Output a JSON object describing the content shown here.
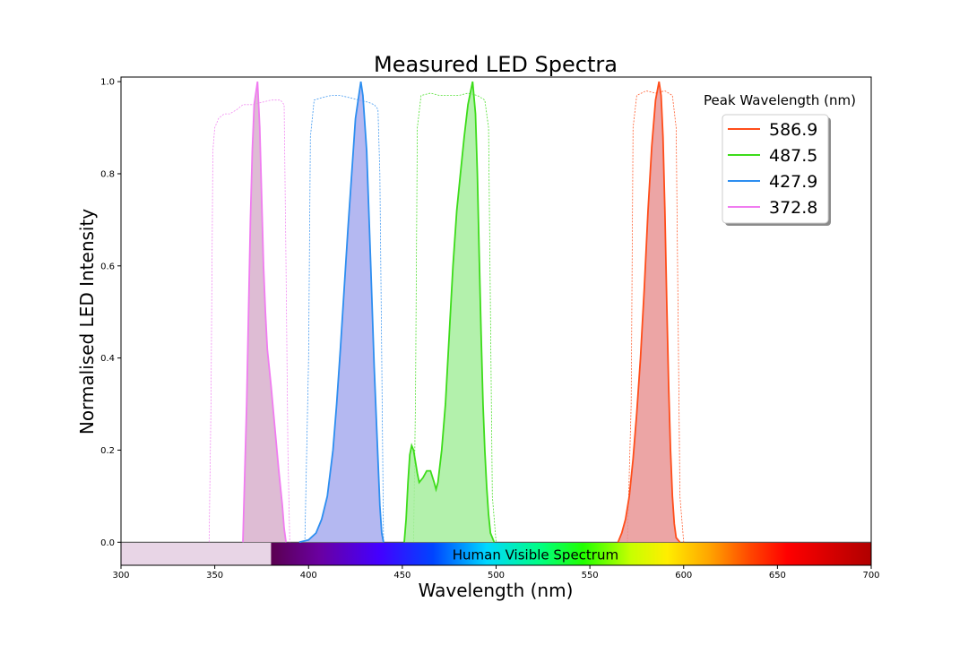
{
  "chart_data": {
    "type": "line",
    "title": "Measured LED Spectra",
    "xlabel": "Wavelength (nm)",
    "ylabel": "Normalised LED Intensity",
    "xlim": [
      300,
      700
    ],
    "ylim": [
      -0.05,
      1.01
    ],
    "x_ticks": [
      300,
      350,
      400,
      450,
      500,
      550,
      600,
      650,
      700
    ],
    "y_ticks": [
      0.0,
      0.2,
      0.4,
      0.6,
      0.8,
      1.0
    ],
    "legend_title": "Peak Wavelength (nm)",
    "legend_position": "top-right",
    "visible_band_label": "Human Visible Spectrum",
    "uv_band_range": [
      300,
      380
    ],
    "visible_band_range": [
      380,
      700
    ],
    "series": [
      {
        "name": "586.9",
        "color": "#ff4d1a",
        "fill": "#e99595",
        "peak": 586.9,
        "points": [
          [
            565,
            0
          ],
          [
            567,
            0.02
          ],
          [
            569,
            0.05
          ],
          [
            571,
            0.1
          ],
          [
            573,
            0.18
          ],
          [
            575,
            0.28
          ],
          [
            577,
            0.4
          ],
          [
            579,
            0.55
          ],
          [
            581,
            0.72
          ],
          [
            583,
            0.86
          ],
          [
            585,
            0.96
          ],
          [
            586.9,
            1.0
          ],
          [
            588,
            0.97
          ],
          [
            589,
            0.88
          ],
          [
            590,
            0.72
          ],
          [
            591,
            0.52
          ],
          [
            592,
            0.34
          ],
          [
            593,
            0.2
          ],
          [
            594,
            0.1
          ],
          [
            595,
            0.04
          ],
          [
            596,
            0.01
          ],
          [
            598,
            0
          ]
        ],
        "filter": [
          [
            570,
            0
          ],
          [
            572,
            0.3
          ],
          [
            573,
            0.9
          ],
          [
            575,
            0.97
          ],
          [
            580,
            0.98
          ],
          [
            585,
            0.975
          ],
          [
            590,
            0.98
          ],
          [
            594,
            0.97
          ],
          [
            596,
            0.9
          ],
          [
            597,
            0.5
          ],
          [
            598,
            0.1
          ],
          [
            600,
            0
          ]
        ]
      },
      {
        "name": "487.5",
        "color": "#3ddc1a",
        "fill": "#a6ee9e",
        "peak": 487.5,
        "points": [
          [
            451,
            0
          ],
          [
            452,
            0.05
          ],
          [
            453,
            0.13
          ],
          [
            454,
            0.19
          ],
          [
            455,
            0.21
          ],
          [
            456,
            0.2
          ],
          [
            458,
            0.15
          ],
          [
            459,
            0.13
          ],
          [
            461,
            0.14
          ],
          [
            463,
            0.155
          ],
          [
            465,
            0.155
          ],
          [
            467,
            0.13
          ],
          [
            468,
            0.115
          ],
          [
            469,
            0.13
          ],
          [
            471,
            0.2
          ],
          [
            473,
            0.3
          ],
          [
            475,
            0.45
          ],
          [
            477,
            0.6
          ],
          [
            479,
            0.72
          ],
          [
            481,
            0.8
          ],
          [
            483,
            0.88
          ],
          [
            485,
            0.95
          ],
          [
            487.5,
            1.0
          ],
          [
            489,
            0.93
          ],
          [
            490,
            0.8
          ],
          [
            491,
            0.62
          ],
          [
            492,
            0.45
          ],
          [
            493,
            0.3
          ],
          [
            494,
            0.2
          ],
          [
            495,
            0.12
          ],
          [
            496,
            0.06
          ],
          [
            497,
            0.02
          ],
          [
            499,
            0
          ]
        ],
        "filter": [
          [
            456,
            0
          ],
          [
            457,
            0.3
          ],
          [
            458,
            0.9
          ],
          [
            460,
            0.97
          ],
          [
            465,
            0.975
          ],
          [
            470,
            0.97
          ],
          [
            475,
            0.97
          ],
          [
            480,
            0.97
          ],
          [
            485,
            0.975
          ],
          [
            490,
            0.97
          ],
          [
            494,
            0.96
          ],
          [
            496,
            0.9
          ],
          [
            497,
            0.5
          ],
          [
            498,
            0.1
          ],
          [
            500,
            0
          ]
        ]
      },
      {
        "name": "427.9",
        "color": "#2d8ef0",
        "fill": "#a7abee",
        "peak": 427.9,
        "points": [
          [
            395,
            0
          ],
          [
            400,
            0.005
          ],
          [
            404,
            0.02
          ],
          [
            407,
            0.05
          ],
          [
            410,
            0.1
          ],
          [
            413,
            0.2
          ],
          [
            415,
            0.3
          ],
          [
            417,
            0.42
          ],
          [
            419,
            0.55
          ],
          [
            421,
            0.68
          ],
          [
            423,
            0.8
          ],
          [
            425,
            0.92
          ],
          [
            427.9,
            1.0
          ],
          [
            429,
            0.97
          ],
          [
            431,
            0.85
          ],
          [
            433,
            0.62
          ],
          [
            435,
            0.38
          ],
          [
            437,
            0.18
          ],
          [
            438,
            0.08
          ],
          [
            439,
            0.02
          ],
          [
            440,
            0
          ]
        ],
        "filter": [
          [
            398,
            0
          ],
          [
            400,
            0.4
          ],
          [
            401,
            0.88
          ],
          [
            403,
            0.96
          ],
          [
            407,
            0.965
          ],
          [
            412,
            0.97
          ],
          [
            417,
            0.97
          ],
          [
            422,
            0.965
          ],
          [
            427,
            0.96
          ],
          [
            432,
            0.955
          ],
          [
            435,
            0.95
          ],
          [
            437,
            0.94
          ],
          [
            438,
            0.8
          ],
          [
            439,
            0.4
          ],
          [
            440,
            0
          ]
        ]
      },
      {
        "name": "372.8",
        "color": "#f07cf0",
        "fill": "#d8b0cc",
        "peak": 372.8,
        "points": [
          [
            365,
            0
          ],
          [
            366,
            0.15
          ],
          [
            367,
            0.3
          ],
          [
            368,
            0.5
          ],
          [
            369,
            0.7
          ],
          [
            370,
            0.85
          ],
          [
            371,
            0.95
          ],
          [
            372.8,
            1.0
          ],
          [
            374,
            0.9
          ],
          [
            375,
            0.75
          ],
          [
            376,
            0.6
          ],
          [
            377,
            0.5
          ],
          [
            378,
            0.42
          ],
          [
            380,
            0.34
          ],
          [
            382,
            0.25
          ],
          [
            384,
            0.16
          ],
          [
            386,
            0.08
          ],
          [
            387,
            0.03
          ],
          [
            388,
            0
          ]
        ],
        "filter": [
          [
            347,
            0
          ],
          [
            348,
            0.3
          ],
          [
            349,
            0.85
          ],
          [
            350,
            0.9
          ],
          [
            352,
            0.92
          ],
          [
            355,
            0.93
          ],
          [
            358,
            0.93
          ],
          [
            362,
            0.94
          ],
          [
            365,
            0.95
          ],
          [
            370,
            0.95
          ],
          [
            375,
            0.955
          ],
          [
            380,
            0.96
          ],
          [
            385,
            0.96
          ],
          [
            387,
            0.95
          ],
          [
            388,
            0.6
          ],
          [
            389,
            0.2
          ],
          [
            390,
            0
          ]
        ]
      }
    ]
  }
}
